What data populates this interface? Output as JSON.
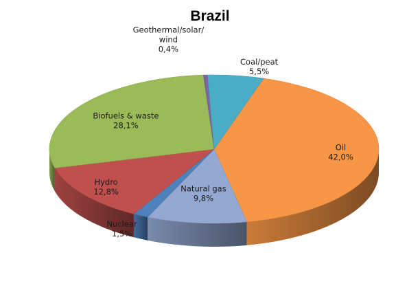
{
  "chart_data": {
    "type": "pie",
    "style": "3d",
    "title": "Brazil",
    "decimal_separator": ",",
    "slices": [
      {
        "label": "Oil",
        "value": 42.0,
        "value_text": "42,0%",
        "color": "#F79646"
      },
      {
        "label": "Natural gas",
        "value": 9.8,
        "value_text": "9,8%",
        "color": "#94A8D2"
      },
      {
        "label": "Nuclear",
        "value": 1.5,
        "value_text": "1,5%",
        "color": "#4F81BD"
      },
      {
        "label": "Hydro",
        "value": 12.8,
        "value_text": "12,8%",
        "color": "#C0504D"
      },
      {
        "label": "Biofuels & waste",
        "value": 28.1,
        "value_text": "28,1%",
        "color": "#9BBB59"
      },
      {
        "label": "Geothermal/solar/\nwind",
        "value": 0.4,
        "value_text": "0,4%",
        "color": "#8064A2"
      },
      {
        "label": "Coal/peat",
        "value": 5.5,
        "value_text": "5,5%",
        "color": "#4BACC6"
      }
    ]
  }
}
